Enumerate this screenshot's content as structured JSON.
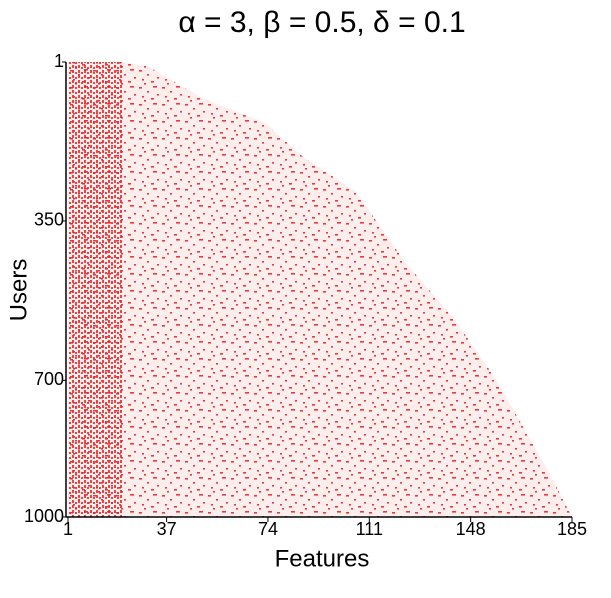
{
  "chart_data": {
    "type": "area",
    "title": "α = 3, β = 0.5, δ = 0.1",
    "x_label": "Features",
    "y_label": "Users",
    "x": [
      1,
      20,
      30,
      50,
      73,
      87,
      106,
      124,
      142,
      157,
      176,
      185
    ],
    "values": [
      1,
      1,
      10,
      80,
      135,
      210,
      285,
      440,
      565,
      695,
      895,
      1000
    ],
    "color": "#e8262a",
    "xlim": [
      1,
      185
    ],
    "xticks": [
      1,
      37,
      74,
      111,
      148,
      185
    ],
    "ylim": [
      1,
      1000
    ],
    "yticks": [
      1,
      350,
      700,
      1000
    ],
    "y_inverted": true
  }
}
